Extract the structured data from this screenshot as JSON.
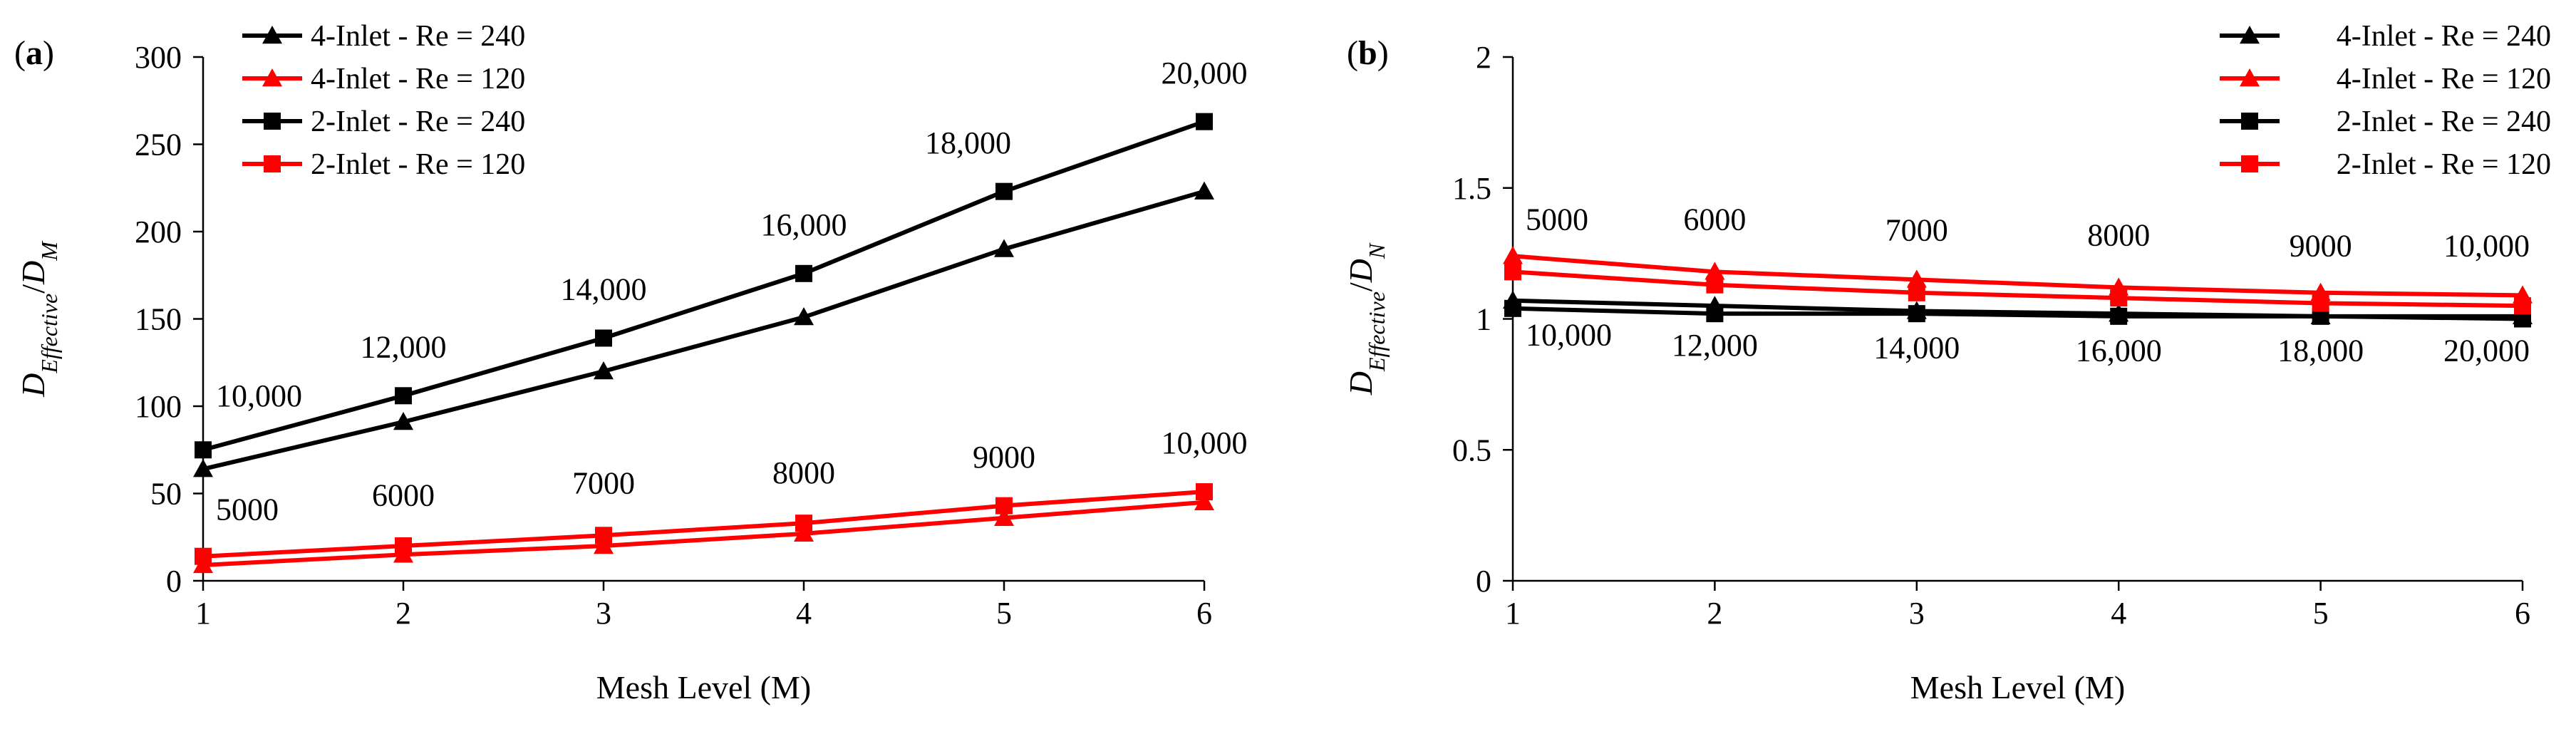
{
  "figure": {
    "panels": [
      "(a)",
      "(b)"
    ]
  },
  "colors": {
    "black": "#000000",
    "red": "#ff0000",
    "axis": "#000000",
    "grid": "#d9d9d9"
  },
  "legend": {
    "entries": [
      {
        "label": "4-Inlet - Re = 240",
        "color": "#000000",
        "marker": "triangle"
      },
      {
        "label": "4-Inlet - Re = 120",
        "color": "#ff0000",
        "marker": "triangle"
      },
      {
        "label": "2-Inlet - Re = 240",
        "color": "#000000",
        "marker": "square"
      },
      {
        "label": "2-Inlet - Re = 120",
        "color": "#ff0000",
        "marker": "square"
      }
    ]
  },
  "chart_data": [
    {
      "type": "line",
      "panel": "(a)",
      "xlabel": "Mesh Level (M)",
      "ylabel": "D_Effective / D_M",
      "x": [
        1,
        2,
        3,
        4,
        5,
        6
      ],
      "xticks": [
        "1",
        "2",
        "3",
        "4",
        "5",
        "6"
      ],
      "ylim": [
        0,
        300
      ],
      "yticks": [
        "0",
        "50",
        "100",
        "150",
        "200",
        "250",
        "300"
      ],
      "legend_position": "top-left",
      "series": [
        {
          "name": "4-Inlet - Re = 240",
          "color": "#000000",
          "marker": "triangle",
          "values": [
            64,
            91,
            120,
            151,
            190,
            223
          ]
        },
        {
          "name": "4-Inlet - Re = 120",
          "color": "#ff0000",
          "marker": "triangle",
          "values": [
            9,
            15,
            20,
            27,
            36,
            45
          ]
        },
        {
          "name": "2-Inlet - Re = 240",
          "color": "#000000",
          "marker": "square",
          "values": [
            75,
            106,
            139,
            176,
            223,
            263
          ]
        },
        {
          "name": "2-Inlet - Re = 120",
          "color": "#ff0000",
          "marker": "square",
          "values": [
            14,
            20,
            26,
            33,
            43,
            51
          ]
        }
      ],
      "annotations": [
        {
          "text": "10,000",
          "x": 1,
          "y": 100,
          "anchor": "start"
        },
        {
          "text": "12,000",
          "x": 2,
          "y": 128,
          "anchor": "middle"
        },
        {
          "text": "14,000",
          "x": 3,
          "y": 161,
          "anchor": "middle"
        },
        {
          "text": "16,000",
          "x": 4,
          "y": 198,
          "anchor": "middle"
        },
        {
          "text": "18,000",
          "x": 5,
          "y": 245,
          "anchor": "end"
        },
        {
          "text": "20,000",
          "x": 6,
          "y": 285,
          "anchor": "middle"
        },
        {
          "text": "5000",
          "x": 1,
          "y": 35,
          "anchor": "start"
        },
        {
          "text": "6000",
          "x": 2,
          "y": 43,
          "anchor": "middle"
        },
        {
          "text": "7000",
          "x": 3,
          "y": 50,
          "anchor": "middle"
        },
        {
          "text": "8000",
          "x": 4,
          "y": 56,
          "anchor": "middle"
        },
        {
          "text": "9000",
          "x": 5,
          "y": 65,
          "anchor": "middle"
        },
        {
          "text": "10,000",
          "x": 6,
          "y": 73,
          "anchor": "middle"
        }
      ]
    },
    {
      "type": "line",
      "panel": "(b)",
      "xlabel": "Mesh Level (M)",
      "ylabel": "D_Effective / D_N",
      "x": [
        1,
        2,
        3,
        4,
        5,
        6
      ],
      "xticks": [
        "1",
        "2",
        "3",
        "4",
        "5",
        "6"
      ],
      "ylim": [
        0,
        2
      ],
      "yticks": [
        "0",
        "0.5",
        "1",
        "1.5",
        "2"
      ],
      "legend_position": "top-right",
      "series": [
        {
          "name": "4-Inlet - Re = 240",
          "color": "#000000",
          "marker": "triangle",
          "values": [
            1.07,
            1.05,
            1.03,
            1.02,
            1.01,
            1.01
          ]
        },
        {
          "name": "4-Inlet - Re = 120",
          "color": "#ff0000",
          "marker": "triangle",
          "values": [
            1.24,
            1.18,
            1.15,
            1.12,
            1.1,
            1.09
          ]
        },
        {
          "name": "2-Inlet - Re = 240",
          "color": "#000000",
          "marker": "square",
          "values": [
            1.04,
            1.02,
            1.02,
            1.01,
            1.01,
            1.0
          ]
        },
        {
          "name": "2-Inlet - Re = 120",
          "color": "#ff0000",
          "marker": "square",
          "values": [
            1.18,
            1.13,
            1.1,
            1.08,
            1.06,
            1.05
          ]
        }
      ],
      "annotations": [
        {
          "text": "5000",
          "x": 1,
          "y": 1.34,
          "anchor": "start"
        },
        {
          "text": "6000",
          "x": 2,
          "y": 1.34,
          "anchor": "middle"
        },
        {
          "text": "7000",
          "x": 3,
          "y": 1.3,
          "anchor": "middle"
        },
        {
          "text": "8000",
          "x": 4,
          "y": 1.28,
          "anchor": "middle"
        },
        {
          "text": "9000",
          "x": 5,
          "y": 1.24,
          "anchor": "middle"
        },
        {
          "text": "10,000",
          "x": 6,
          "y": 1.24,
          "anchor": "end"
        },
        {
          "text": "10,000",
          "x": 1,
          "y": 0.9,
          "anchor": "start"
        },
        {
          "text": "12,000",
          "x": 2,
          "y": 0.86,
          "anchor": "middle"
        },
        {
          "text": "14,000",
          "x": 3,
          "y": 0.85,
          "anchor": "middle"
        },
        {
          "text": "16,000",
          "x": 4,
          "y": 0.84,
          "anchor": "middle"
        },
        {
          "text": "18,000",
          "x": 5,
          "y": 0.84,
          "anchor": "middle"
        },
        {
          "text": "20,000",
          "x": 6,
          "y": 0.84,
          "anchor": "end"
        }
      ]
    }
  ]
}
